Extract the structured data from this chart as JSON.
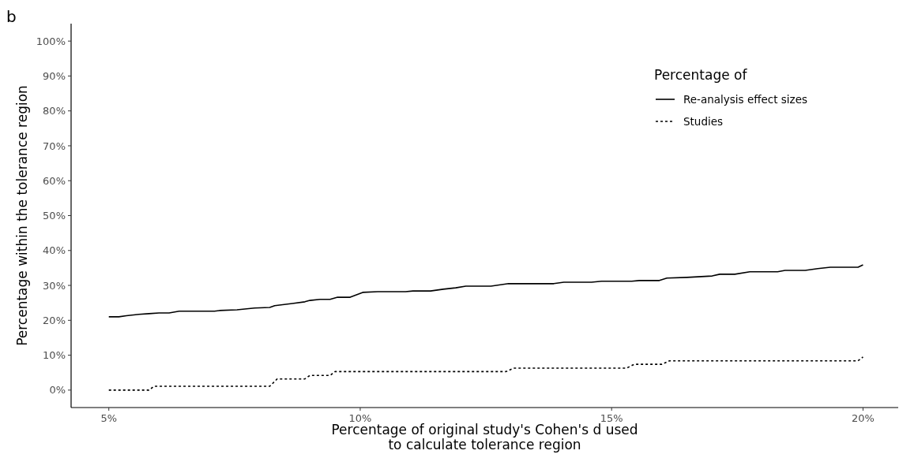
{
  "chart_data": {
    "type": "line",
    "title": "b",
    "xlabel": "Percentage of original study's Cohen's d used\nto calculate tolerance region",
    "ylabel": "Percentage within the tolerance region",
    "legend_title": "Percentage of",
    "legend": "top right",
    "grid": false,
    "xlim": [
      4.25,
      20.7
    ],
    "ylim": [
      -5,
      105
    ],
    "xticks": [
      {
        "value": 5,
        "label": "5%"
      },
      {
        "value": 10,
        "label": "10%"
      },
      {
        "value": 15,
        "label": "15%"
      },
      {
        "value": 20,
        "label": "20%"
      }
    ],
    "yticks": [
      {
        "value": 0,
        "label": "0%"
      },
      {
        "value": 10,
        "label": "10%"
      },
      {
        "value": 20,
        "label": "20%"
      },
      {
        "value": 30,
        "label": "30%"
      },
      {
        "value": 40,
        "label": "40%"
      },
      {
        "value": 50,
        "label": "50%"
      },
      {
        "value": 60,
        "label": "60%"
      },
      {
        "value": 70,
        "label": "70%"
      },
      {
        "value": 80,
        "label": "80%"
      },
      {
        "value": 90,
        "label": "90%"
      },
      {
        "value": 100,
        "label": "100%"
      }
    ],
    "series": [
      {
        "name": "Re-analysis effect sizes",
        "color": "#000000",
        "line_style": "solid",
        "x": [
          5.0,
          5.2,
          5.35,
          5.6,
          5.8,
          6.0,
          6.2,
          6.4,
          7.1,
          7.2,
          7.55,
          7.9,
          8.2,
          8.3,
          8.65,
          8.9,
          9.0,
          9.2,
          9.4,
          9.55,
          9.8,
          10.05,
          10.35,
          10.9,
          11.05,
          11.4,
          11.65,
          11.9,
          12.1,
          12.6,
          12.95,
          13.85,
          14.05,
          14.6,
          14.8,
          15.4,
          15.55,
          15.95,
          16.1,
          16.5,
          17.0,
          17.15,
          17.45,
          17.75,
          18.3,
          18.45,
          18.85,
          19.1,
          19.35,
          19.9,
          20.0
        ],
        "values": [
          21.0,
          21.0,
          21.3,
          21.7,
          21.9,
          22.1,
          22.1,
          22.6,
          22.6,
          22.8,
          23.0,
          23.5,
          23.7,
          24.2,
          24.8,
          25.3,
          25.7,
          26.0,
          26.0,
          26.6,
          26.6,
          28.0,
          28.2,
          28.2,
          28.4,
          28.4,
          28.9,
          29.3,
          29.8,
          29.8,
          30.5,
          30.5,
          30.9,
          30.9,
          31.2,
          31.2,
          31.4,
          31.4,
          32.1,
          32.3,
          32.7,
          33.2,
          33.2,
          33.9,
          33.9,
          34.3,
          34.3,
          34.8,
          35.2,
          35.2,
          35.9
        ]
      },
      {
        "name": "Studies",
        "color": "#000000",
        "line_style": "dotted",
        "x": [
          5.0,
          5.8,
          5.9,
          8.2,
          8.35,
          8.9,
          9.0,
          9.4,
          9.5,
          12.9,
          13.05,
          15.3,
          15.45,
          16.0,
          16.15,
          19.9,
          20.0
        ],
        "values": [
          0,
          0,
          1.1,
          1.1,
          3.2,
          3.2,
          4.2,
          4.2,
          5.3,
          5.3,
          6.3,
          6.3,
          7.4,
          7.4,
          8.4,
          8.4,
          9.5
        ]
      }
    ]
  }
}
